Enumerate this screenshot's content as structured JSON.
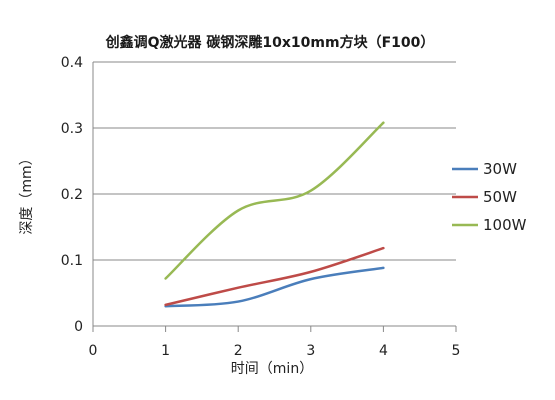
{
  "chart_data": {
    "type": "line",
    "title": "创鑫调Q激光器  碳钢深雕10x10mm方块（F100）",
    "xlabel": "时间（min）",
    "ylabel": "深度（mm）",
    "xlim": [
      0,
      5
    ],
    "ylim": [
      0,
      0.4
    ],
    "xticks": [
      "0",
      "1",
      "2",
      "3",
      "4",
      "5"
    ],
    "yticks": [
      "0",
      "0.1",
      "0.2",
      "0.3",
      "0.4"
    ],
    "x": [
      1,
      2,
      3,
      4
    ],
    "grid": true,
    "legend_position": "right",
    "series": [
      {
        "name": "30W",
        "color": "#4a7ebb",
        "values": [
          0.03,
          0.037,
          0.071,
          0.088
        ]
      },
      {
        "name": "50W",
        "color": "#be4b48",
        "values": [
          0.032,
          0.058,
          0.082,
          0.118
        ]
      },
      {
        "name": "100W",
        "color": "#98b954",
        "values": [
          0.072,
          0.175,
          0.205,
          0.308
        ]
      }
    ]
  }
}
